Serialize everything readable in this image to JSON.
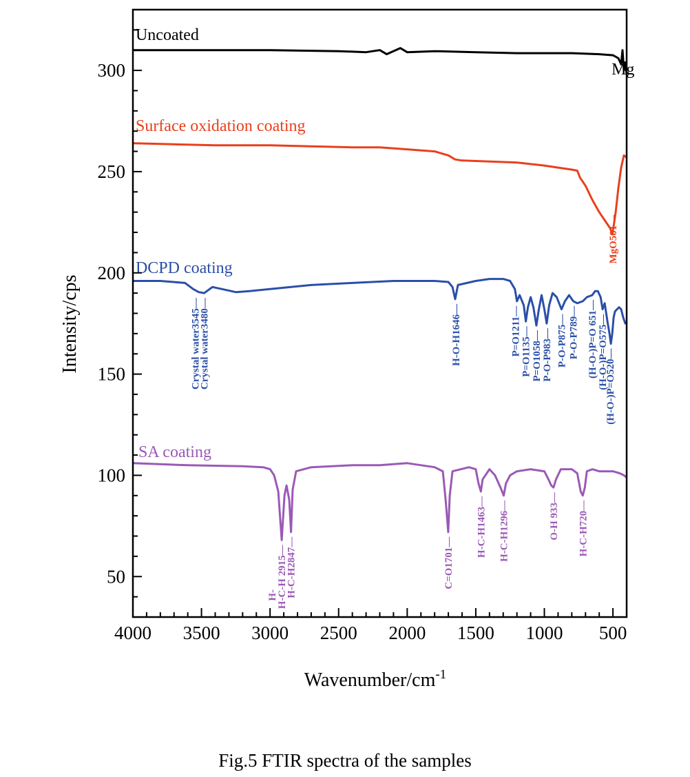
{
  "caption": "Fig.5    FTIR spectra of the samples",
  "chart_data": {
    "type": "line",
    "xlabel": "Wavenumber/cm",
    "xlabel_sup": "-1",
    "ylabel": "Intensity/cps",
    "xlim": [
      4000,
      400
    ],
    "ylim": [
      30,
      330
    ],
    "x_ticks": [
      "4000",
      "3500",
      "3000",
      "2500",
      "2000",
      "1500",
      "1000",
      "500"
    ],
    "y_ticks": [
      "50",
      "100",
      "150",
      "200",
      "250",
      "300"
    ],
    "grid": false,
    "legend": "inline labels above each trace",
    "series": [
      {
        "name": "Uncoated",
        "color": "#000000",
        "points": [
          [
            4000,
            310
          ],
          [
            3000,
            310
          ],
          [
            2500,
            309.5
          ],
          [
            2300,
            309
          ],
          [
            2200,
            310
          ],
          [
            2150,
            308
          ],
          [
            2050,
            311
          ],
          [
            2000,
            309
          ],
          [
            1800,
            309.5
          ],
          [
            1500,
            309
          ],
          [
            1200,
            308.5
          ],
          [
            1000,
            308.5
          ],
          [
            800,
            308.5
          ],
          [
            600,
            308
          ],
          [
            500,
            307.5
          ],
          [
            460,
            306
          ],
          [
            440,
            303
          ],
          [
            430,
            310
          ],
          [
            420,
            300
          ],
          [
            410,
            304
          ],
          [
            400,
            298
          ]
        ]
      },
      {
        "name": "Surface oxidation coating",
        "color": "#e8401c",
        "points": [
          [
            4000,
            264
          ],
          [
            3700,
            263.5
          ],
          [
            3400,
            263
          ],
          [
            3000,
            263
          ],
          [
            2700,
            262.5
          ],
          [
            2400,
            262
          ],
          [
            2200,
            262
          ],
          [
            2000,
            261
          ],
          [
            1800,
            260
          ],
          [
            1700,
            258
          ],
          [
            1650,
            256
          ],
          [
            1600,
            255.5
          ],
          [
            1400,
            255
          ],
          [
            1200,
            254.5
          ],
          [
            1000,
            253
          ],
          [
            900,
            252
          ],
          [
            800,
            251
          ],
          [
            760,
            250.5
          ],
          [
            740,
            247
          ],
          [
            700,
            243
          ],
          [
            650,
            236
          ],
          [
            600,
            230
          ],
          [
            560,
            226
          ],
          [
            520,
            222
          ],
          [
            505,
            219
          ],
          [
            495,
            223
          ],
          [
            480,
            230
          ],
          [
            460,
            242
          ],
          [
            440,
            252
          ],
          [
            420,
            258
          ],
          [
            400,
            257
          ]
        ]
      },
      {
        "name": "DCPD coating",
        "color": "#2a4fa8",
        "points": [
          [
            4000,
            196
          ],
          [
            3800,
            196
          ],
          [
            3620,
            195
          ],
          [
            3560,
            192
          ],
          [
            3520,
            190.5
          ],
          [
            3480,
            190
          ],
          [
            3420,
            193
          ],
          [
            3350,
            192
          ],
          [
            3250,
            190.5
          ],
          [
            3150,
            191
          ],
          [
            3000,
            192
          ],
          [
            2700,
            194
          ],
          [
            2400,
            195
          ],
          [
            2100,
            196
          ],
          [
            1800,
            196
          ],
          [
            1700,
            195.5
          ],
          [
            1670,
            193
          ],
          [
            1650,
            187
          ],
          [
            1630,
            194
          ],
          [
            1500,
            196
          ],
          [
            1400,
            197
          ],
          [
            1300,
            197
          ],
          [
            1250,
            196
          ],
          [
            1215,
            192
          ],
          [
            1200,
            186
          ],
          [
            1180,
            189
          ],
          [
            1150,
            184
          ],
          [
            1135,
            176
          ],
          [
            1120,
            183
          ],
          [
            1100,
            188
          ],
          [
            1080,
            183
          ],
          [
            1058,
            174
          ],
          [
            1040,
            182
          ],
          [
            1020,
            189
          ],
          [
            1000,
            182
          ],
          [
            983,
            175
          ],
          [
            965,
            184
          ],
          [
            940,
            190
          ],
          [
            910,
            188
          ],
          [
            875,
            182
          ],
          [
            850,
            186
          ],
          [
            820,
            189
          ],
          [
            789,
            186
          ],
          [
            760,
            185
          ],
          [
            720,
            186
          ],
          [
            690,
            188
          ],
          [
            651,
            189
          ],
          [
            630,
            191
          ],
          [
            610,
            191
          ],
          [
            590,
            188
          ],
          [
            575,
            182
          ],
          [
            560,
            185
          ],
          [
            540,
            176
          ],
          [
            525,
            170
          ],
          [
            515,
            165
          ],
          [
            505,
            170
          ],
          [
            495,
            178
          ],
          [
            485,
            181
          ],
          [
            470,
            182
          ],
          [
            455,
            183
          ],
          [
            440,
            182
          ],
          [
            425,
            178
          ],
          [
            410,
            175
          ],
          [
            400,
            176
          ]
        ]
      },
      {
        "name": "SA coating",
        "color": "#9b59b6",
        "points": [
          [
            4000,
            106
          ],
          [
            3600,
            105
          ],
          [
            3200,
            104.5
          ],
          [
            3050,
            104
          ],
          [
            3000,
            103
          ],
          [
            2970,
            100
          ],
          [
            2940,
            92
          ],
          [
            2915,
            68
          ],
          [
            2895,
            90
          ],
          [
            2880,
            95
          ],
          [
            2860,
            88
          ],
          [
            2847,
            72
          ],
          [
            2835,
            93
          ],
          [
            2810,
            102
          ],
          [
            2700,
            104
          ],
          [
            2400,
            105
          ],
          [
            2200,
            105
          ],
          [
            2000,
            106
          ],
          [
            1800,
            104
          ],
          [
            1740,
            102
          ],
          [
            1720,
            88
          ],
          [
            1701,
            72
          ],
          [
            1690,
            90
          ],
          [
            1670,
            102
          ],
          [
            1550,
            104
          ],
          [
            1500,
            103
          ],
          [
            1480,
            96
          ],
          [
            1463,
            92
          ],
          [
            1450,
            98
          ],
          [
            1400,
            103
          ],
          [
            1360,
            100
          ],
          [
            1320,
            94
          ],
          [
            1296,
            90
          ],
          [
            1280,
            96
          ],
          [
            1250,
            100
          ],
          [
            1200,
            102
          ],
          [
            1100,
            103
          ],
          [
            1000,
            102
          ],
          [
            970,
            98
          ],
          [
            950,
            95
          ],
          [
            933,
            94
          ],
          [
            915,
            98
          ],
          [
            880,
            103
          ],
          [
            800,
            103
          ],
          [
            760,
            101
          ],
          [
            735,
            92
          ],
          [
            720,
            90
          ],
          [
            705,
            94
          ],
          [
            690,
            102
          ],
          [
            650,
            103
          ],
          [
            600,
            102
          ],
          [
            500,
            102
          ],
          [
            450,
            101
          ],
          [
            420,
            100
          ],
          [
            400,
            99
          ]
        ]
      }
    ],
    "labels": [
      {
        "text": "Uncoated",
        "color": "#000000",
        "x": 3980,
        "y": 315
      },
      {
        "text": "Surface oxidation coating",
        "color": "#e8401c",
        "x": 3980,
        "y": 270
      },
      {
        "text": "DCPD coating",
        "color": "#2a4fa8",
        "x": 3980,
        "y": 200
      },
      {
        "text": "SA coating",
        "color": "#9b59b6",
        "x": 3960,
        "y": 109
      },
      {
        "text": "Mg",
        "color": "#000000",
        "x": 510,
        "y": 298
      }
    ],
    "annotations": [
      {
        "text": "MgO501—",
        "color": "#e8401c",
        "x": 501,
        "y": 230
      },
      {
        "text": "Crystal water3545—",
        "color": "#2a4fa8",
        "x": 3545,
        "y": 189
      },
      {
        "text": "Crystal water3480—",
        "color": "#2a4fa8",
        "x": 3480,
        "y": 189
      },
      {
        "text": "H-O-H1646—",
        "color": "#2a4fa8",
        "x": 1646,
        "y": 186
      },
      {
        "text": "P=O1211—",
        "color": "#2a4fa8",
        "x": 1211,
        "y": 185
      },
      {
        "text": "P=O1135—",
        "color": "#2a4fa8",
        "x": 1135,
        "y": 175
      },
      {
        "text": "P=O1058—",
        "color": "#2a4fa8",
        "x": 1058,
        "y": 173
      },
      {
        "text": "P-O-P983—",
        "color": "#2a4fa8",
        "x": 983,
        "y": 174
      },
      {
        "text": "P-O-P875—",
        "color": "#2a4fa8",
        "x": 875,
        "y": 181
      },
      {
        "text": "P-O-P789—",
        "color": "#2a4fa8",
        "x": 789,
        "y": 185
      },
      {
        "text": "(H-O-)P=O 651—",
        "color": "#2a4fa8",
        "x": 651,
        "y": 188
      },
      {
        "text": "(H-O-)P=O575—",
        "color": "#2a4fa8",
        "x": 575,
        "y": 181
      },
      {
        "text": "(H-O-)P=O520—",
        "color": "#2a4fa8",
        "x": 520,
        "y": 164
      },
      {
        "text": "H-",
        "color": "#9b59b6",
        "x": 2985,
        "y": 45
      },
      {
        "text": "H-C-H 2915—",
        "color": "#9b59b6",
        "x": 2915,
        "y": 67
      },
      {
        "text": "H-C-H2847—",
        "color": "#9b59b6",
        "x": 2847,
        "y": 71
      },
      {
        "text": "C=O1701—",
        "color": "#9b59b6",
        "x": 1701,
        "y": 71
      },
      {
        "text": "H-C-H1463—",
        "color": "#9b59b6",
        "x": 1463,
        "y": 91
      },
      {
        "text": "H-C-H1296—",
        "color": "#9b59b6",
        "x": 1296,
        "y": 89
      },
      {
        "text": "O-H 933—",
        "color": "#9b59b6",
        "x": 933,
        "y": 93
      },
      {
        "text": "H-C-H720—",
        "color": "#9b59b6",
        "x": 720,
        "y": 89
      }
    ]
  }
}
